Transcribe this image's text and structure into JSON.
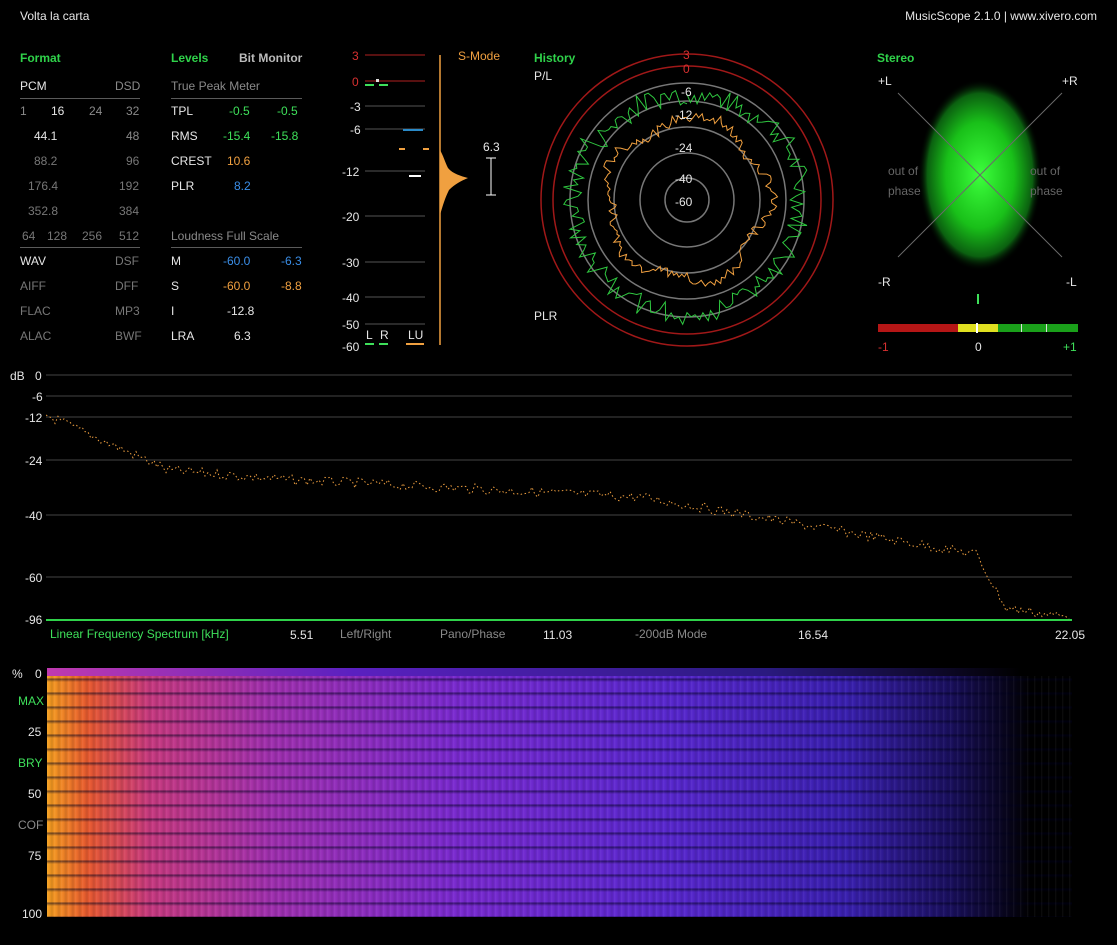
{
  "window": {
    "track_title": "Volta la carta",
    "app_title": "MusicScope 2.1.0 | www.xivero.com"
  },
  "format": {
    "title": "Format",
    "pcm": "PCM",
    "dsd": "DSD",
    "bits": [
      "1",
      "16",
      "24",
      "32"
    ],
    "rates": [
      [
        "44.1",
        "48"
      ],
      [
        "88.2",
        "96"
      ],
      [
        "176.4",
        "192"
      ],
      [
        "352.8",
        "384"
      ]
    ],
    "dsd_rates": [
      "64",
      "128",
      "256",
      "512"
    ],
    "containers": [
      [
        "WAV",
        "DSF"
      ],
      [
        "AIFF",
        "DFF"
      ],
      [
        "FLAC",
        "MP3"
      ],
      [
        "ALAC",
        "BWF"
      ]
    ]
  },
  "levels": {
    "title": "Levels",
    "bit_monitor": "Bit Monitor",
    "true_peak_header": "True Peak Meter",
    "rows": [
      {
        "label": "TPL",
        "l": "-0.5",
        "r": "-0.5"
      },
      {
        "label": "RMS",
        "l": "-15.4",
        "r": "-15.8"
      },
      {
        "label": "CREST",
        "l": "10.6",
        "r": ""
      },
      {
        "label": "PLR",
        "l": "8.2",
        "r": ""
      }
    ],
    "loudness_header": "Loudness Full Scale",
    "loudness": [
      {
        "label": "M",
        "a": "-60.0",
        "b": "-6.3"
      },
      {
        "label": "S",
        "a": "-60.0",
        "b": "-8.8"
      },
      {
        "label": "I",
        "a": "-12.8",
        "b": ""
      },
      {
        "label": "LRA",
        "a": "6.3",
        "b": ""
      }
    ]
  },
  "meter": {
    "mode": "S-Mode",
    "scale": [
      "3",
      "0",
      "-3",
      "-6",
      "-12",
      "-20",
      "-30",
      "-40",
      "-50",
      "-60"
    ],
    "lra_value": "6.3",
    "channels": [
      "L",
      "R",
      "LU"
    ]
  },
  "history": {
    "title": "History",
    "pl_label": "P/L",
    "plr_label": "PLR",
    "rings": [
      "3",
      "0",
      "-6",
      "-12",
      "-24",
      "-40",
      "-60"
    ]
  },
  "stereo": {
    "title": "Stereo",
    "corners": [
      "+L",
      "+R",
      "-R",
      "-L"
    ],
    "out_of_phase_left": [
      "out of",
      "phase"
    ],
    "out_of_phase_right": [
      "out of",
      "phase"
    ],
    "correlation_ticks": [
      "-1",
      "0",
      "+1"
    ]
  },
  "spectrum": {
    "y_unit": "dB",
    "y_ticks": [
      "0",
      "-6",
      "-12",
      "-24",
      "-40",
      "-60",
      "-96"
    ],
    "title": "Linear Frequency Spectrum [kHz]",
    "x_ticks": [
      "5.51",
      "11.03",
      "16.54",
      "22.05"
    ],
    "options": [
      "Left/Right",
      "Pano/Phase",
      "-200dB Mode"
    ]
  },
  "spectrogram": {
    "labels": [
      "%",
      "0",
      "MAX",
      "25",
      "BRY",
      "50",
      "COF",
      "75",
      "100"
    ]
  },
  "colors": {
    "accent_green": "#2fd24a",
    "orange": "#f0a040",
    "blue": "#3a8ee8",
    "red": "#d83030"
  }
}
